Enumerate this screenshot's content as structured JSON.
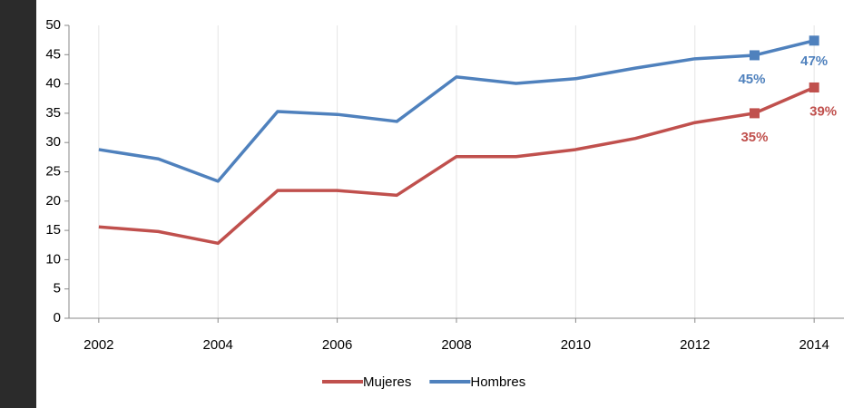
{
  "chart_data": {
    "type": "line",
    "x": [
      2002,
      2003,
      2004,
      2005,
      2006,
      2007,
      2008,
      2009,
      2010,
      2011,
      2012,
      2013,
      2014
    ],
    "series": [
      {
        "name": "Mujeres",
        "color": "#c0504d",
        "values": [
          15.6,
          14.8,
          12.8,
          21.8,
          21.8,
          21.0,
          27.6,
          27.6,
          28.8,
          30.7,
          33.4,
          35.0,
          39.4
        ],
        "value_labels": [
          null,
          null,
          null,
          null,
          null,
          null,
          null,
          null,
          null,
          null,
          null,
          "35%",
          "39%"
        ]
      },
      {
        "name": "Hombres",
        "color": "#4f81bd",
        "values": [
          28.8,
          27.2,
          23.4,
          35.3,
          34.8,
          33.6,
          41.2,
          40.1,
          40.9,
          42.7,
          44.3,
          44.9,
          47.4
        ],
        "value_labels": [
          null,
          null,
          null,
          null,
          null,
          null,
          null,
          null,
          null,
          null,
          null,
          "45%",
          "47%"
        ]
      }
    ],
    "xlim": [
      2001.5,
      2014.5
    ],
    "xticks": [
      2002,
      2004,
      2006,
      2008,
      2010,
      2012,
      2014
    ],
    "ylim": [
      0,
      50
    ],
    "yticks": [
      0,
      5,
      10,
      15,
      20,
      25,
      30,
      35,
      40,
      45,
      50
    ],
    "grid": "x",
    "legend": "bottom"
  }
}
